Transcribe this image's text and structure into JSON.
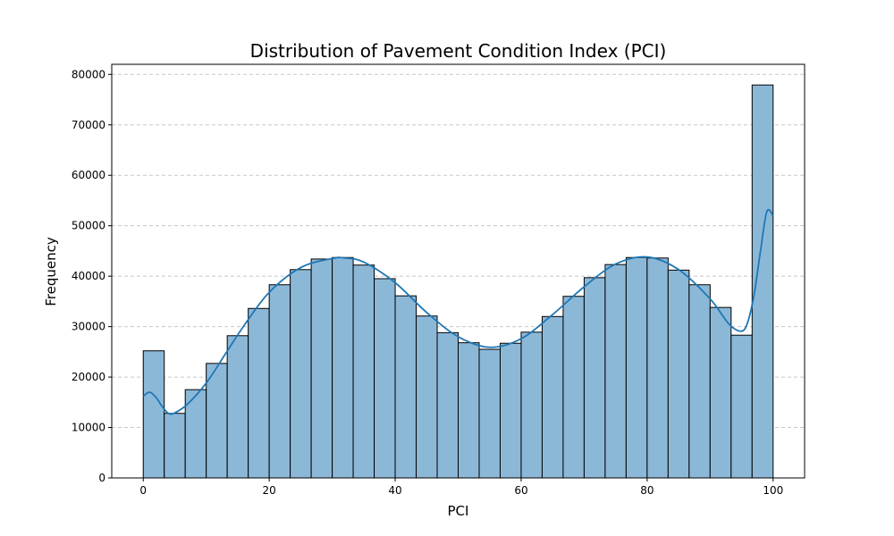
{
  "chart_data": {
    "type": "bar",
    "title": "Distribution of Pavement Condition Index (PCI)",
    "xlabel": "PCI",
    "ylabel": "Frequency",
    "xlim": [
      -5,
      105
    ],
    "ylim": [
      0,
      82000
    ],
    "xticks": [
      0,
      20,
      40,
      60,
      80,
      100
    ],
    "yticks": [
      0,
      10000,
      20000,
      30000,
      40000,
      50000,
      60000,
      70000,
      80000
    ],
    "grid": "y-dashed",
    "bin_width": 3.3333,
    "bins": [
      {
        "x0": 0.0,
        "x1": 3.3333,
        "value": 25200
      },
      {
        "x0": 3.3333,
        "x1": 6.6667,
        "value": 12800
      },
      {
        "x0": 6.6667,
        "x1": 10.0,
        "value": 17500
      },
      {
        "x0": 10.0,
        "x1": 13.3333,
        "value": 22700
      },
      {
        "x0": 13.3333,
        "x1": 16.6667,
        "value": 28200
      },
      {
        "x0": 16.6667,
        "x1": 20.0,
        "value": 33600
      },
      {
        "x0": 20.0,
        "x1": 23.3333,
        "value": 38300
      },
      {
        "x0": 23.3333,
        "x1": 26.6667,
        "value": 41300
      },
      {
        "x0": 26.6667,
        "x1": 30.0,
        "value": 43400
      },
      {
        "x0": 30.0,
        "x1": 33.3333,
        "value": 43700
      },
      {
        "x0": 33.3333,
        "x1": 36.6667,
        "value": 42200
      },
      {
        "x0": 36.6667,
        "x1": 40.0,
        "value": 39500
      },
      {
        "x0": 40.0,
        "x1": 43.3333,
        "value": 36100
      },
      {
        "x0": 43.3333,
        "x1": 46.6667,
        "value": 32100
      },
      {
        "x0": 46.6667,
        "x1": 50.0,
        "value": 28800
      },
      {
        "x0": 50.0,
        "x1": 53.3333,
        "value": 26800
      },
      {
        "x0": 53.3333,
        "x1": 56.6667,
        "value": 25500
      },
      {
        "x0": 56.6667,
        "x1": 60.0,
        "value": 26700
      },
      {
        "x0": 60.0,
        "x1": 63.3333,
        "value": 28900
      },
      {
        "x0": 63.3333,
        "x1": 66.6667,
        "value": 32000
      },
      {
        "x0": 66.6667,
        "x1": 70.0,
        "value": 36000
      },
      {
        "x0": 70.0,
        "x1": 73.3333,
        "value": 39700
      },
      {
        "x0": 73.3333,
        "x1": 76.6667,
        "value": 42300
      },
      {
        "x0": 76.6667,
        "x1": 80.0,
        "value": 43700
      },
      {
        "x0": 80.0,
        "x1": 83.3333,
        "value": 43600
      },
      {
        "x0": 83.3333,
        "x1": 86.6667,
        "value": 41200
      },
      {
        "x0": 86.6667,
        "x1": 90.0,
        "value": 38300
      },
      {
        "x0": 90.0,
        "x1": 93.3333,
        "value": 33800
      },
      {
        "x0": 93.3333,
        "x1": 96.6667,
        "value": 28300
      },
      {
        "x0": 96.6667,
        "x1": 100.0,
        "value": 77900
      }
    ],
    "kde": {
      "x": [
        0,
        1,
        2,
        3,
        4,
        5,
        7,
        10,
        13,
        16,
        20,
        25,
        30,
        32,
        35,
        40,
        45,
        50,
        55,
        60,
        65,
        70,
        75,
        80,
        85,
        90,
        93,
        95,
        96,
        97,
        98,
        99,
        100
      ],
      "y": [
        16200,
        17000,
        16000,
        14200,
        12800,
        12900,
        14600,
        18800,
        24500,
        30200,
        36800,
        41700,
        43500,
        43600,
        42800,
        38700,
        32800,
        28000,
        25900,
        27600,
        32400,
        37900,
        42400,
        43800,
        41300,
        35500,
        30500,
        29100,
        31000,
        36500,
        45000,
        52800,
        52000
      ]
    },
    "colors": {
      "bar_fill": "#8cb8d8",
      "bar_edge": "#000000",
      "kde_line": "#1f77b4",
      "grid": "#c7c7c7"
    }
  }
}
